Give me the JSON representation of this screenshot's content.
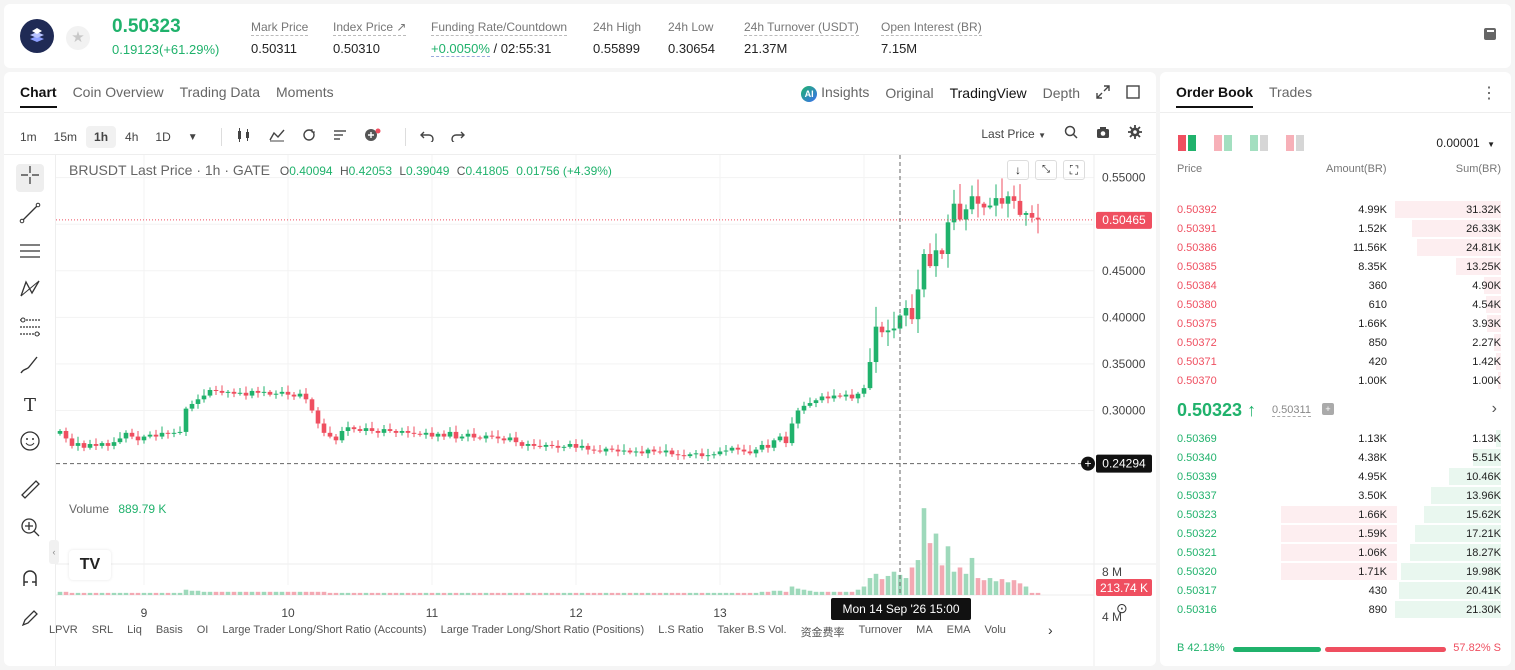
{
  "header": {
    "last_price": "0.50323",
    "change": "0.19123(+61.29%)",
    "stats": [
      {
        "label": "Mark Price",
        "value": "0.50311"
      },
      {
        "label": "Index Price ↗",
        "value": "0.50310"
      },
      {
        "label": "Funding Rate/Countdown",
        "value_green": "+0.0050%",
        "value": "/ 02:55:31"
      },
      {
        "label": "24h High",
        "value": "0.55899"
      },
      {
        "label": "24h Low",
        "value": "0.30654"
      },
      {
        "label": "24h Turnover (USDT)",
        "value": "21.37M"
      },
      {
        "label": "Open Interest (BR)",
        "value": "7.15M"
      }
    ]
  },
  "chart_tabs": [
    "Chart",
    "Coin Overview",
    "Trading Data",
    "Moments"
  ],
  "view_tabs": {
    "insights": "Insights",
    "ai_badge": "AI",
    "original": "Original",
    "tradingview": "TradingView",
    "depth": "Depth"
  },
  "intervals": [
    "1m",
    "15m",
    "1h",
    "4h",
    "1D"
  ],
  "selected_interval": "1h",
  "last_price_select": "Last Price",
  "legend": {
    "symbol": "BRUSDT Last Price · 1h · GATE",
    "o": "O",
    "o_val": "0.40094",
    "h": "H",
    "h_val": "0.42053",
    "l": "L",
    "l_val": "0.39049",
    "c": "C",
    "c_val": "0.41805",
    "chg": "0.01756 (+4.39%)"
  },
  "volume": {
    "label": "Volume",
    "value": "889.79 K",
    "badge": "213.74 K",
    "ticks": [
      "8 M",
      "4 M"
    ]
  },
  "price_axis": [
    "0.55000",
    "0.50000",
    "0.45000",
    "0.40000",
    "0.35000",
    "0.30000"
  ],
  "price_markers": {
    "current": "0.50465",
    "crosshair": "0.24294"
  },
  "time_axis": [
    "9",
    "10",
    "11",
    "12",
    "13",
    "14"
  ],
  "crosshair_time": "Mon 14 Sep '26   15:00",
  "tv_logo": "TV",
  "indicator_tabs": [
    "LPVR",
    "SRL",
    "Liq",
    "Basis",
    "OI",
    "Large Trader Long/Short Ratio (Accounts)",
    "Large Trader Long/Short Ratio (Positions)",
    "L.S Ratio",
    "Taker B.S Vol.",
    "资金费率",
    "Turnover",
    "MA",
    "EMA",
    "Volu"
  ],
  "chart_data": {
    "type": "candlestick",
    "symbol": "BRUSDT",
    "interval": "1h",
    "ylim": [
      0.22,
      0.57
    ],
    "closes": [
      0.278,
      0.27,
      0.262,
      0.265,
      0.26,
      0.264,
      0.262,
      0.265,
      0.262,
      0.266,
      0.27,
      0.276,
      0.272,
      0.268,
      0.272,
      0.274,
      0.272,
      0.276,
      0.275,
      0.276,
      0.277,
      0.302,
      0.307,
      0.312,
      0.316,
      0.322,
      0.321,
      0.319,
      0.32,
      0.318,
      0.319,
      0.316,
      0.321,
      0.319,
      0.32,
      0.317,
      0.318,
      0.32,
      0.317,
      0.315,
      0.318,
      0.312,
      0.3,
      0.286,
      0.276,
      0.272,
      0.268,
      0.278,
      0.282,
      0.28,
      0.278,
      0.281,
      0.278,
      0.276,
      0.28,
      0.278,
      0.276,
      0.278,
      0.276,
      0.275,
      0.274,
      0.276,
      0.272,
      0.275,
      0.272,
      0.277,
      0.27,
      0.272,
      0.275,
      0.271,
      0.27,
      0.273,
      0.272,
      0.27,
      0.268,
      0.271,
      0.266,
      0.262,
      0.264,
      0.262,
      0.261,
      0.263,
      0.262,
      0.26,
      0.261,
      0.264,
      0.26,
      0.262,
      0.258,
      0.257,
      0.256,
      0.259,
      0.258,
      0.256,
      0.257,
      0.255,
      0.256,
      0.254,
      0.258,
      0.256,
      0.255,
      0.257,
      0.253,
      0.252,
      0.251,
      0.253,
      0.254,
      0.251,
      0.252,
      0.253,
      0.256,
      0.257,
      0.26,
      0.258,
      0.256,
      0.254,
      0.258,
      0.263,
      0.26,
      0.268,
      0.272,
      0.265,
      0.286,
      0.3,
      0.305,
      0.308,
      0.311,
      0.315,
      0.313,
      0.316,
      0.315,
      0.317,
      0.313,
      0.318,
      0.324,
      0.352,
      0.39,
      0.384,
      0.386,
      0.388,
      0.402,
      0.41,
      0.398,
      0.43,
      0.468,
      0.455,
      0.472,
      0.468,
      0.502,
      0.522,
      0.505,
      0.516,
      0.53,
      0.522,
      0.518,
      0.52,
      0.528,
      0.522,
      0.53,
      0.525,
      0.51,
      0.512,
      0.507,
      0.505
    ],
    "volumes_m": [
      0.3,
      0.3,
      0.2,
      0.2,
      0.2,
      0.2,
      0.2,
      0.2,
      0.2,
      0.2,
      0.2,
      0.2,
      0.2,
      0.2,
      0.2,
      0.2,
      0.2,
      0.2,
      0.2,
      0.2,
      0.2,
      0.5,
      0.4,
      0.4,
      0.3,
      0.3,
      0.3,
      0.3,
      0.3,
      0.3,
      0.3,
      0.3,
      0.3,
      0.3,
      0.3,
      0.3,
      0.3,
      0.3,
      0.3,
      0.3,
      0.3,
      0.3,
      0.3,
      0.3,
      0.3,
      0.2,
      0.2,
      0.2,
      0.2,
      0.2,
      0.2,
      0.2,
      0.2,
      0.2,
      0.2,
      0.2,
      0.2,
      0.2,
      0.2,
      0.2,
      0.2,
      0.2,
      0.2,
      0.2,
      0.2,
      0.2,
      0.2,
      0.2,
      0.2,
      0.2,
      0.2,
      0.2,
      0.2,
      0.2,
      0.2,
      0.2,
      0.2,
      0.2,
      0.2,
      0.2,
      0.2,
      0.2,
      0.2,
      0.2,
      0.2,
      0.2,
      0.2,
      0.2,
      0.2,
      0.2,
      0.2,
      0.2,
      0.2,
      0.2,
      0.2,
      0.2,
      0.2,
      0.2,
      0.2,
      0.2,
      0.2,
      0.2,
      0.2,
      0.2,
      0.2,
      0.2,
      0.2,
      0.2,
      0.2,
      0.2,
      0.2,
      0.2,
      0.2,
      0.2,
      0.2,
      0.2,
      0.2,
      0.3,
      0.3,
      0.4,
      0.4,
      0.3,
      0.8,
      0.6,
      0.5,
      0.4,
      0.3,
      0.3,
      0.3,
      0.3,
      0.3,
      0.3,
      0.3,
      0.5,
      0.8,
      1.6,
      2.0,
      1.5,
      1.8,
      2.2,
      1.9,
      1.6,
      2.6,
      3.3,
      8.2,
      4.9,
      5.8,
      2.8,
      4.6,
      2.2,
      2.6,
      2.0,
      3.5,
      1.6,
      1.4,
      1.6,
      1.3,
      1.5,
      1.2,
      1.4,
      1.1,
      0.8
    ]
  },
  "orderbook": {
    "tabs": [
      "Order Book",
      "Trades"
    ],
    "precision": "0.00001",
    "headers": {
      "price": "Price",
      "amount": "Amount(BR)",
      "sum": "Sum(BR)"
    },
    "asks": [
      {
        "p": "0.50392",
        "a": "4.99K",
        "s": "31.32K",
        "depth": 1.0
      },
      {
        "p": "0.50391",
        "a": "1.52K",
        "s": "26.33K",
        "depth": 0.84
      },
      {
        "p": "0.50386",
        "a": "11.56K",
        "s": "24.81K",
        "depth": 0.79
      },
      {
        "p": "0.50385",
        "a": "8.35K",
        "s": "13.25K",
        "depth": 0.42
      },
      {
        "p": "0.50384",
        "a": "360",
        "s": "4.90K",
        "depth": 0.16
      },
      {
        "p": "0.50380",
        "a": "610",
        "s": "4.54K",
        "depth": 0.14
      },
      {
        "p": "0.50375",
        "a": "1.66K",
        "s": "3.93K",
        "depth": 0.13
      },
      {
        "p": "0.50372",
        "a": "850",
        "s": "2.27K",
        "depth": 0.07
      },
      {
        "p": "0.50371",
        "a": "420",
        "s": "1.42K",
        "depth": 0.05
      },
      {
        "p": "0.50370",
        "a": "1.00K",
        "s": "1.00K",
        "depth": 0.03
      }
    ],
    "mid_price": "0.50323 ↑",
    "mark": "0.50311",
    "bids": [
      {
        "p": "0.50369",
        "a": "1.13K",
        "s": "1.13K",
        "depth": 0.05,
        "own": 0
      },
      {
        "p": "0.50340",
        "a": "4.38K",
        "s": "5.51K",
        "depth": 0.26,
        "own": 0
      },
      {
        "p": "0.50339",
        "a": "4.95K",
        "s": "10.46K",
        "depth": 0.49,
        "own": 0
      },
      {
        "p": "0.50337",
        "a": "3.50K",
        "s": "13.96K",
        "depth": 0.66,
        "own": 0
      },
      {
        "p": "0.50323",
        "a": "1.66K",
        "s": "15.62K",
        "depth": 0.73,
        "own": 1
      },
      {
        "p": "0.50322",
        "a": "1.59K",
        "s": "17.21K",
        "depth": 0.81,
        "own": 1
      },
      {
        "p": "0.50321",
        "a": "1.06K",
        "s": "18.27K",
        "depth": 0.86,
        "own": 1
      },
      {
        "p": "0.50320",
        "a": "1.71K",
        "s": "19.98K",
        "depth": 0.94,
        "own": 1
      },
      {
        "p": "0.50317",
        "a": "430",
        "s": "20.41K",
        "depth": 0.96,
        "own": 0
      },
      {
        "p": "0.50316",
        "a": "890",
        "s": "21.30K",
        "depth": 1.0,
        "own": 0
      }
    ],
    "buy_pct": "B 42.18%",
    "sell_pct": "57.82% S",
    "buy_ratio": 0.4218
  },
  "colors": {
    "up": "#20b26c",
    "down": "#ef4f60",
    "accent": "#1f2a55"
  }
}
